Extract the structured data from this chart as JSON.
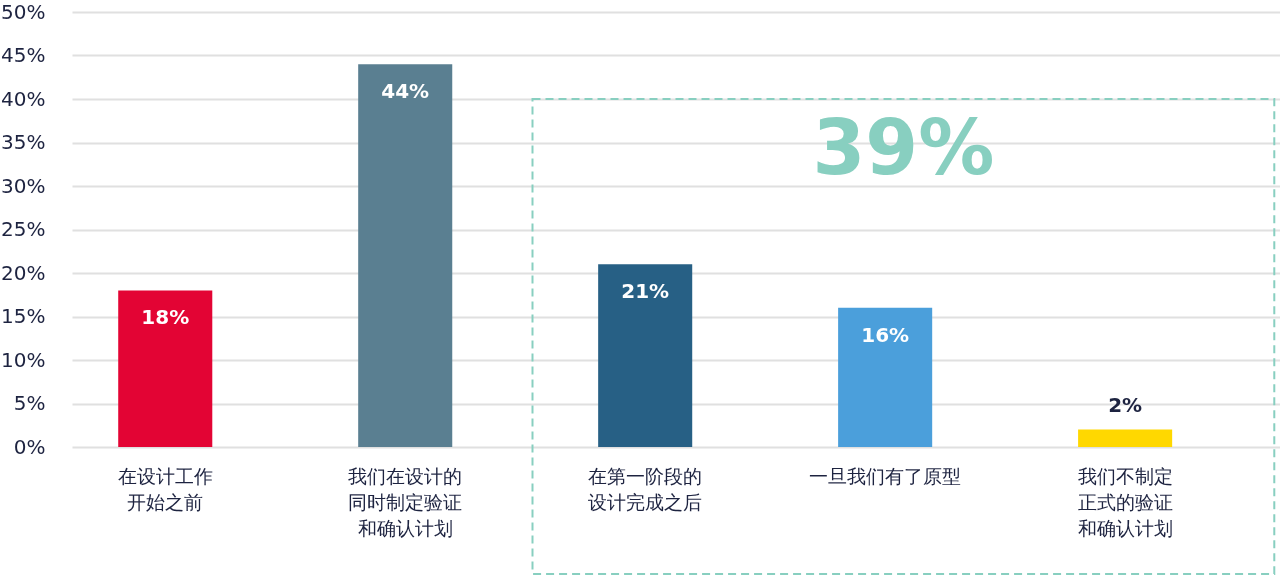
{
  "chart_data": {
    "type": "bar",
    "categories": [
      "在设计工作开始之前",
      "我们在设计的同时制定验证和确认计划",
      "在第一阶段的设计完成之后",
      "一旦我们有了原型",
      "我们不制定正式的验证和确认计划"
    ],
    "values": [
      18,
      44,
      21,
      16,
      2
    ],
    "colors": [
      "#e30434",
      "#5a7f91",
      "#276085",
      "#4b9fdb",
      "#ffd800"
    ],
    "value_labels": [
      "18%",
      "44%",
      "21%",
      "16%",
      "2%"
    ],
    "ylim": [
      0,
      50
    ],
    "yticks": [
      {
        "value": 0,
        "label": "0%"
      },
      {
        "value": 5,
        "label": "5%"
      },
      {
        "value": 10,
        "label": "10%"
      },
      {
        "value": 15,
        "label": "15%"
      },
      {
        "value": 20,
        "label": "20%"
      },
      {
        "value": 25,
        "label": "25%"
      },
      {
        "value": 30,
        "label": "30%"
      },
      {
        "value": 35,
        "label": "35%"
      },
      {
        "value": 40,
        "label": "40%"
      },
      {
        "value": 45,
        "label": "45%"
      },
      {
        "value": 50,
        "label": "50%"
      }
    ],
    "grid": "y",
    "annotations": [
      "39%"
    ]
  }
}
